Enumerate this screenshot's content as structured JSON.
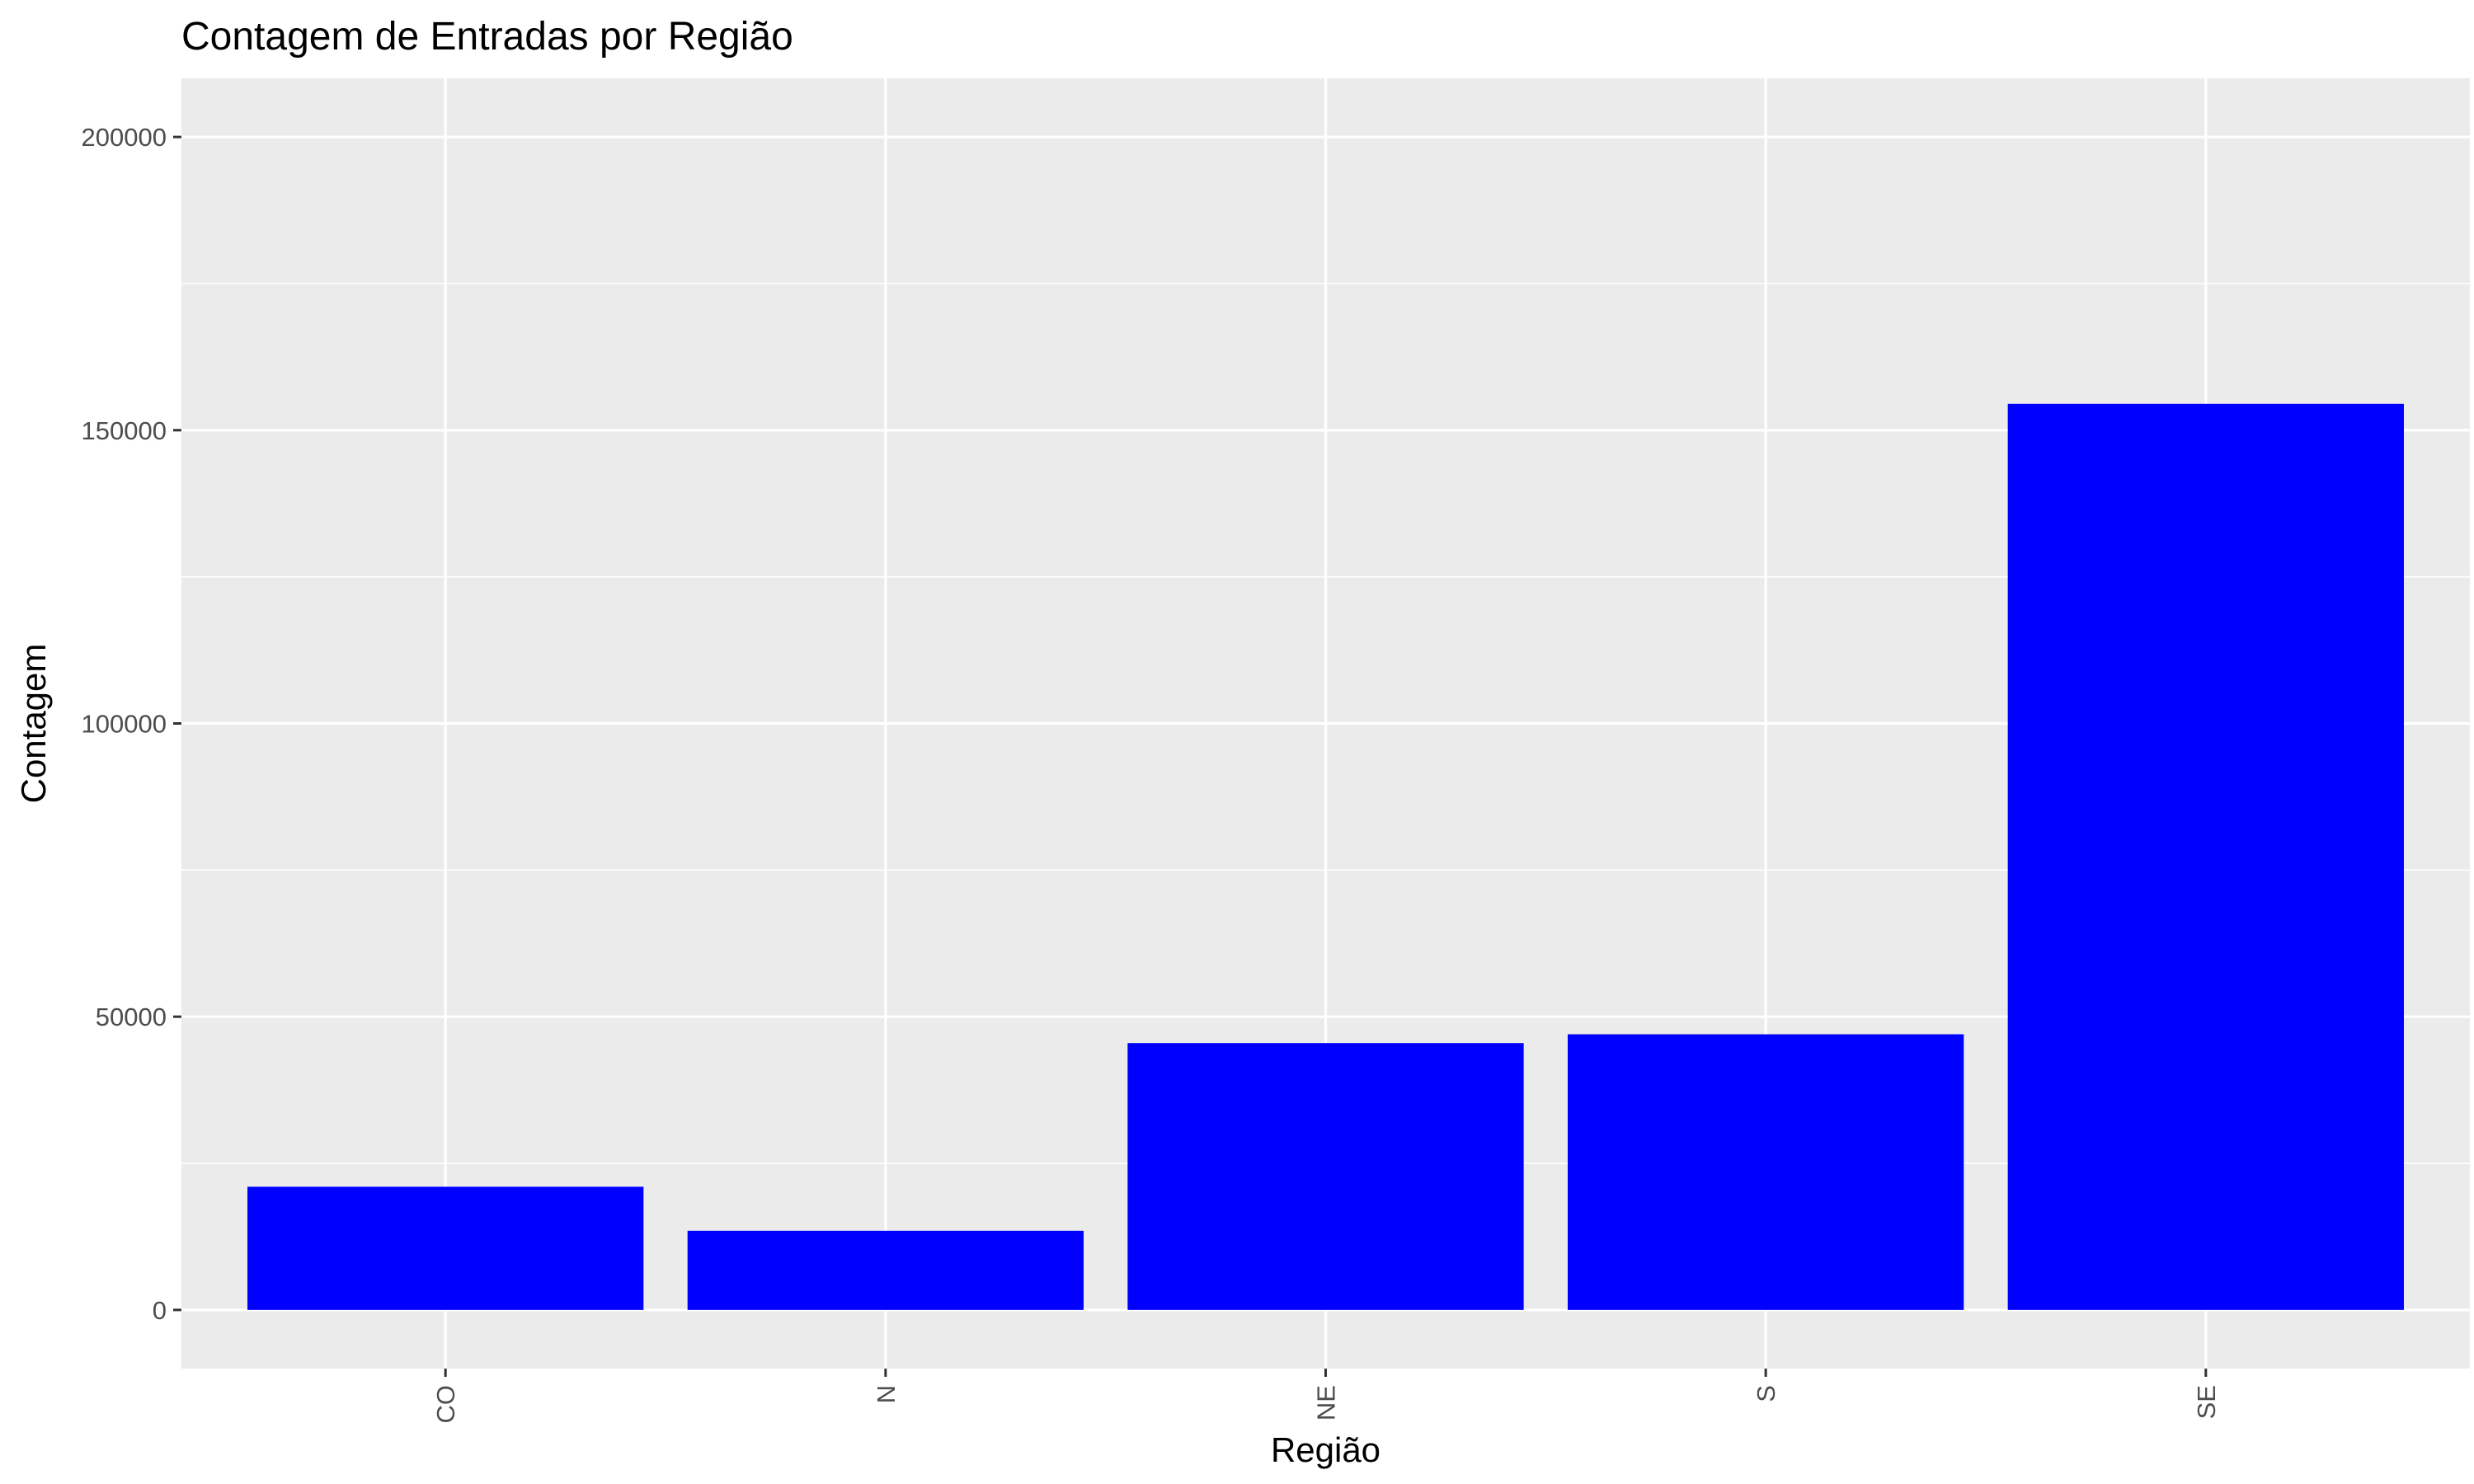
{
  "chart_data": {
    "type": "bar",
    "title": "Contagem de Entradas por Região",
    "xlabel": "Região",
    "ylabel": "Contagem",
    "categories": [
      "CO",
      "N",
      "NE",
      "S",
      "SE"
    ],
    "values": [
      21000,
      13500,
      45500,
      47000,
      154500
    ],
    "ylim": [
      -10000,
      210000
    ],
    "yticks": [
      0,
      50000,
      100000,
      150000,
      200000
    ],
    "ytick_labels": [
      "0",
      "50000",
      "100000",
      "150000",
      "200000"
    ],
    "x_tick_rotation": "vertical",
    "grid": true,
    "legend": "none",
    "colors": {
      "bar": "#0000FF",
      "panel": "#EBEBEB",
      "grid": "#FFFFFF",
      "tick_text": "#4D4D4D",
      "tick_mark": "#333333"
    }
  }
}
